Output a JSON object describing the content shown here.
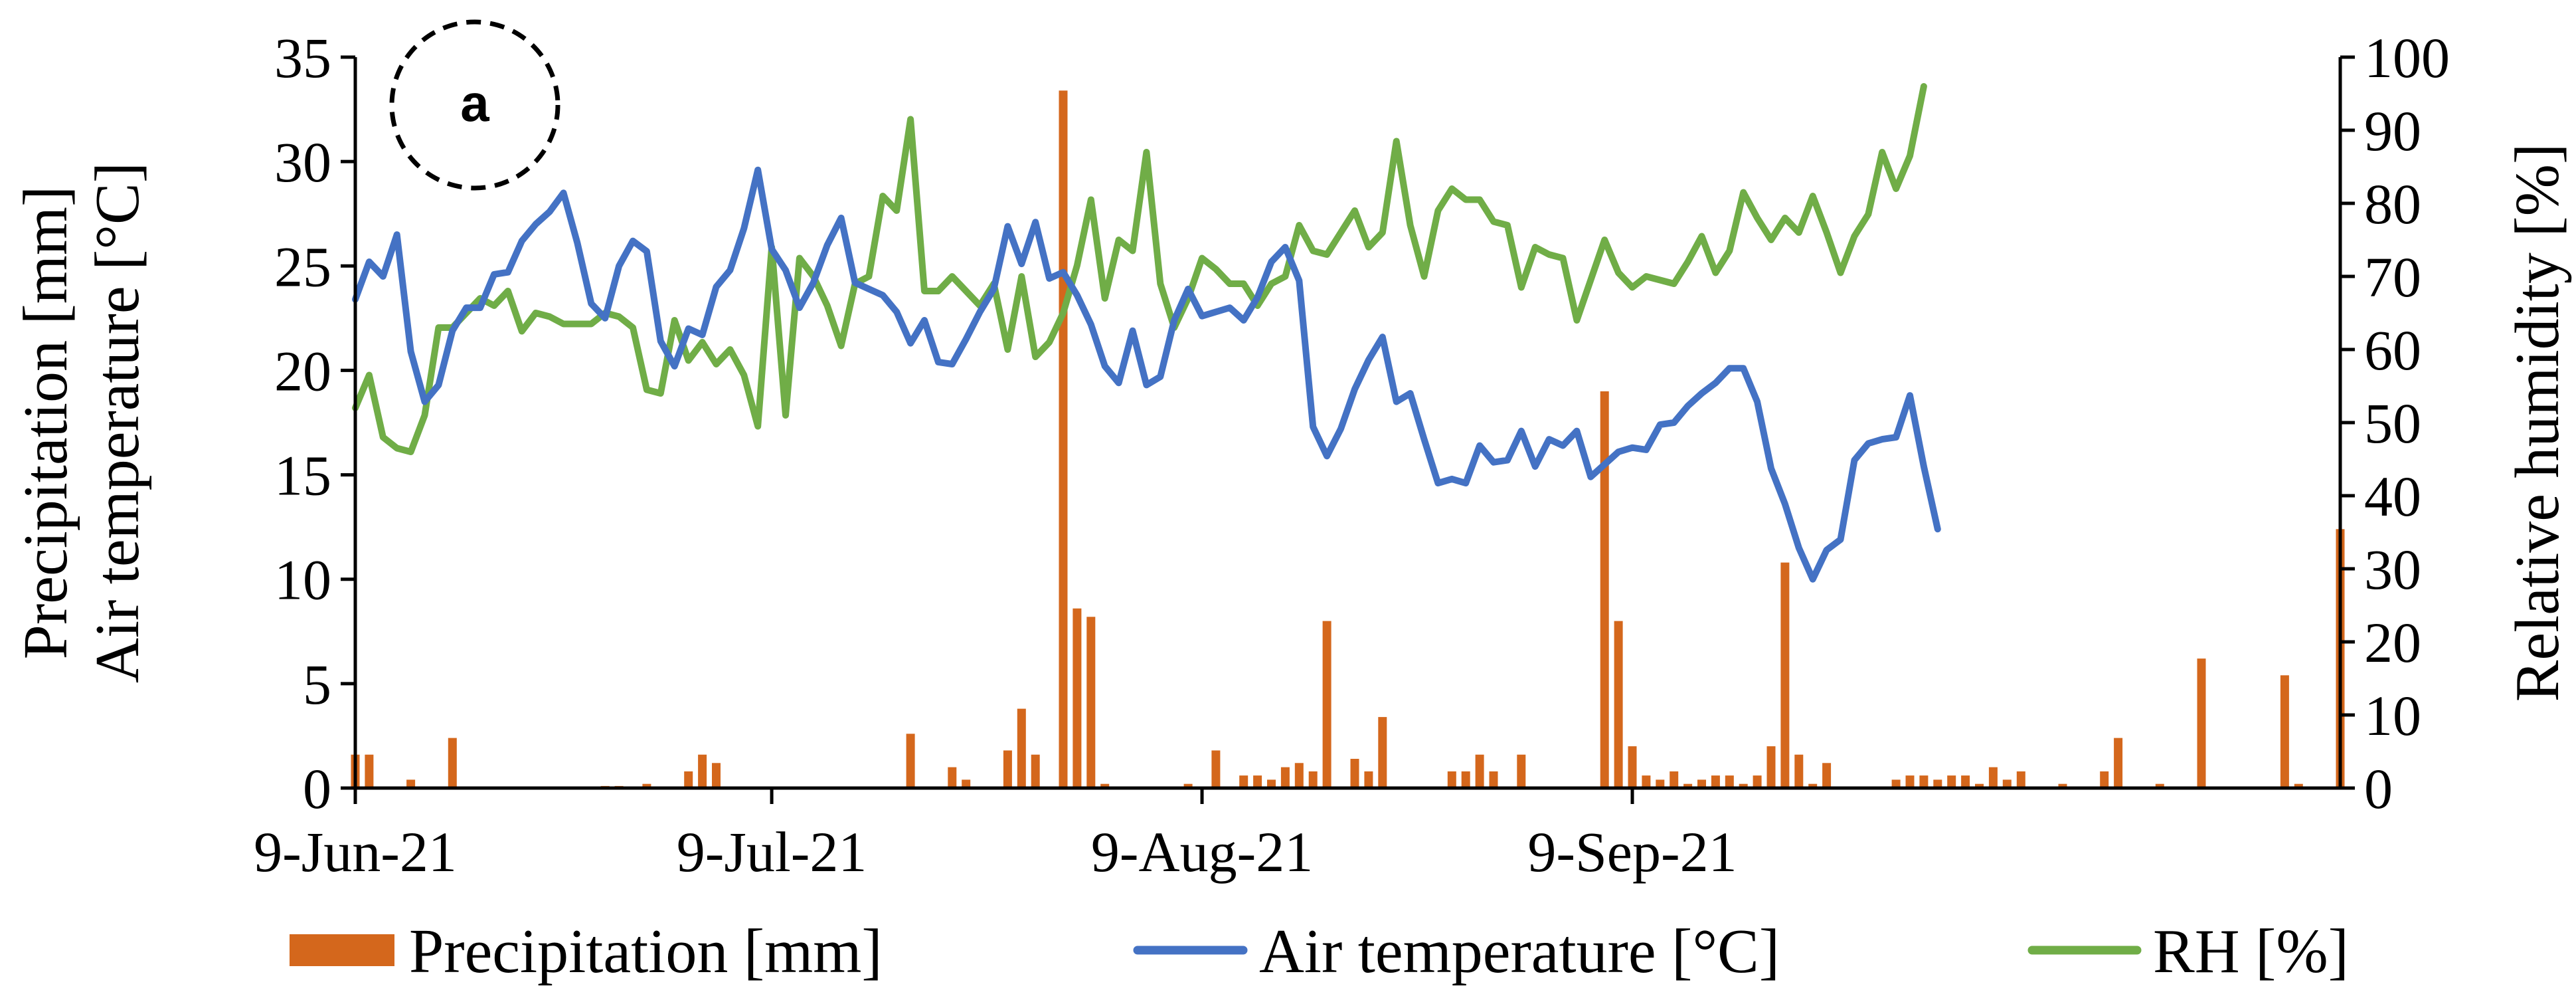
{
  "chart_data": {
    "type": "bar+line",
    "badge": "a",
    "x_tick_labels": [
      "9-Jun-21",
      "9-Jul-21",
      "9-Aug-21",
      "9-Sep-21"
    ],
    "x_tick_day_index": [
      0,
      30,
      61,
      92
    ],
    "left_axis": {
      "title_line1": "Precipitation [mm]",
      "title_line2": "Air temperature [°C]",
      "ylim": [
        0,
        35
      ],
      "ticks": [
        0,
        5,
        10,
        15,
        20,
        25,
        30,
        35
      ]
    },
    "right_axis": {
      "title": "Relative humidity [%]",
      "ylim": [
        0,
        100
      ],
      "ticks": [
        0,
        10,
        20,
        30,
        40,
        50,
        60,
        70,
        80,
        90,
        100
      ]
    },
    "series": [
      {
        "name": "Precipitation [mm]",
        "kind": "bar",
        "axis": "left",
        "color": "#d4671c",
        "values": [
          1.6,
          1.6,
          0,
          0,
          0.4,
          0,
          0,
          2.4,
          0,
          0,
          0,
          0,
          0,
          0,
          0,
          0,
          0,
          0,
          0.1,
          0.1,
          0,
          0.2,
          0,
          0,
          0.8,
          1.6,
          1.2,
          0,
          0,
          0,
          0,
          0,
          0,
          0,
          0,
          0,
          0,
          0,
          0,
          0,
          2.6,
          0,
          0,
          1.0,
          0.4,
          0,
          0,
          1.8,
          3.8,
          1.6,
          0,
          33.4,
          8.6,
          8.2,
          0.2,
          0,
          0,
          0,
          0,
          0,
          0.2,
          0,
          1.8,
          0,
          0.6,
          0.6,
          0.4,
          1.0,
          1.2,
          0.8,
          8.0,
          0,
          1.4,
          0.8,
          3.4,
          0,
          0,
          0,
          0,
          0.8,
          0.8,
          1.6,
          0.8,
          0,
          1.6,
          0,
          0,
          0,
          0,
          0,
          19.0,
          8.0,
          2.0,
          0.6,
          0.4,
          0.8,
          0.2,
          0.4,
          0.6,
          0.6,
          0.2,
          0.6,
          2.0,
          10.8,
          1.6,
          0.2,
          1.2,
          0,
          0,
          0,
          0,
          0.4,
          0.6,
          0.6,
          0.4,
          0.6,
          0.6,
          0.2,
          1.0,
          0.4,
          0.8,
          0,
          0,
          0.2,
          0,
          0,
          0.8,
          2.4,
          0,
          0,
          0.2,
          0,
          0,
          6.2,
          0,
          0,
          0,
          0,
          0,
          5.4,
          0.2,
          0,
          0,
          12.4
        ]
      },
      {
        "name": "Air temperature [°C]",
        "kind": "line",
        "axis": "left",
        "color": "#4472c4",
        "values": [
          23.4,
          25.2,
          24.5,
          26.5,
          20.9,
          18.5,
          19.3,
          21.9,
          23.0,
          23.0,
          24.6,
          24.7,
          26.2,
          27.0,
          27.6,
          28.5,
          26.1,
          23.2,
          22.5,
          25.0,
          26.2,
          25.7,
          21.4,
          20.2,
          22.0,
          21.7,
          24.0,
          24.8,
          26.8,
          29.6,
          25.8,
          24.8,
          23.0,
          24.2,
          26.0,
          27.3,
          24.2,
          23.9,
          23.6,
          22.8,
          21.3,
          22.4,
          20.4,
          20.3,
          21.5,
          22.8,
          23.9,
          26.9,
          25.1,
          27.1,
          24.4,
          24.7,
          23.6,
          22.2,
          20.2,
          19.4,
          21.9,
          19.3,
          19.7,
          22.4,
          23.9,
          22.6,
          22.8,
          23.0,
          22.4,
          23.5,
          25.2,
          25.9,
          24.3,
          17.3,
          15.9,
          17.2,
          19.1,
          20.5,
          21.6,
          18.5,
          18.9,
          16.7,
          14.6,
          14.8,
          14.6,
          16.4,
          15.6,
          15.7,
          17.1,
          15.4,
          16.7,
          16.4,
          17.1,
          14.9,
          15.5,
          16.1,
          16.3,
          16.2,
          17.4,
          17.5,
          18.3,
          18.9,
          19.4,
          20.1,
          20.1,
          18.5,
          15.3,
          13.6,
          11.5,
          10.0,
          11.4,
          11.9,
          15.7,
          16.5,
          16.7,
          16.8,
          18.8,
          15.4,
          12.4
        ]
      },
      {
        "name": "RH [%]",
        "kind": "line",
        "axis": "right",
        "color": "#70ad47",
        "values": [
          52,
          56.5,
          48,
          46.5,
          46,
          51,
          63,
          63,
          65,
          67,
          66,
          68,
          62.5,
          65,
          64.5,
          63.5,
          63.5,
          63.5,
          65,
          64.5,
          63,
          54.5,
          54,
          64,
          58.5,
          61,
          58,
          60,
          56.5,
          49.5,
          74,
          51,
          72.5,
          70,
          66,
          60.5,
          69,
          70,
          81,
          79,
          91.5,
          68,
          68,
          70,
          68,
          66,
          69,
          60,
          70,
          59,
          61,
          65,
          71.5,
          80.5,
          67,
          75,
          73.5,
          87,
          69,
          63,
          67,
          72.5,
          71,
          69,
          69,
          66,
          69,
          70,
          77,
          73.5,
          73,
          76,
          79,
          74,
          76,
          88.5,
          77,
          70,
          79,
          82,
          80.5,
          80.5,
          77.5,
          77,
          68.5,
          74,
          73,
          72.5,
          64,
          69.5,
          75,
          70.5,
          68.5,
          70,
          69.5,
          69,
          72,
          75.5,
          70.5,
          73.5,
          81.5,
          78,
          75,
          78,
          76,
          81,
          76,
          70.5,
          75.5,
          78.5,
          87,
          82,
          86.5,
          96
        ]
      }
    ],
    "legend": {
      "position": "bottom",
      "entries": [
        "Precipitation [mm]",
        "Air temperature [°C]",
        "RH [%]"
      ]
    }
  }
}
